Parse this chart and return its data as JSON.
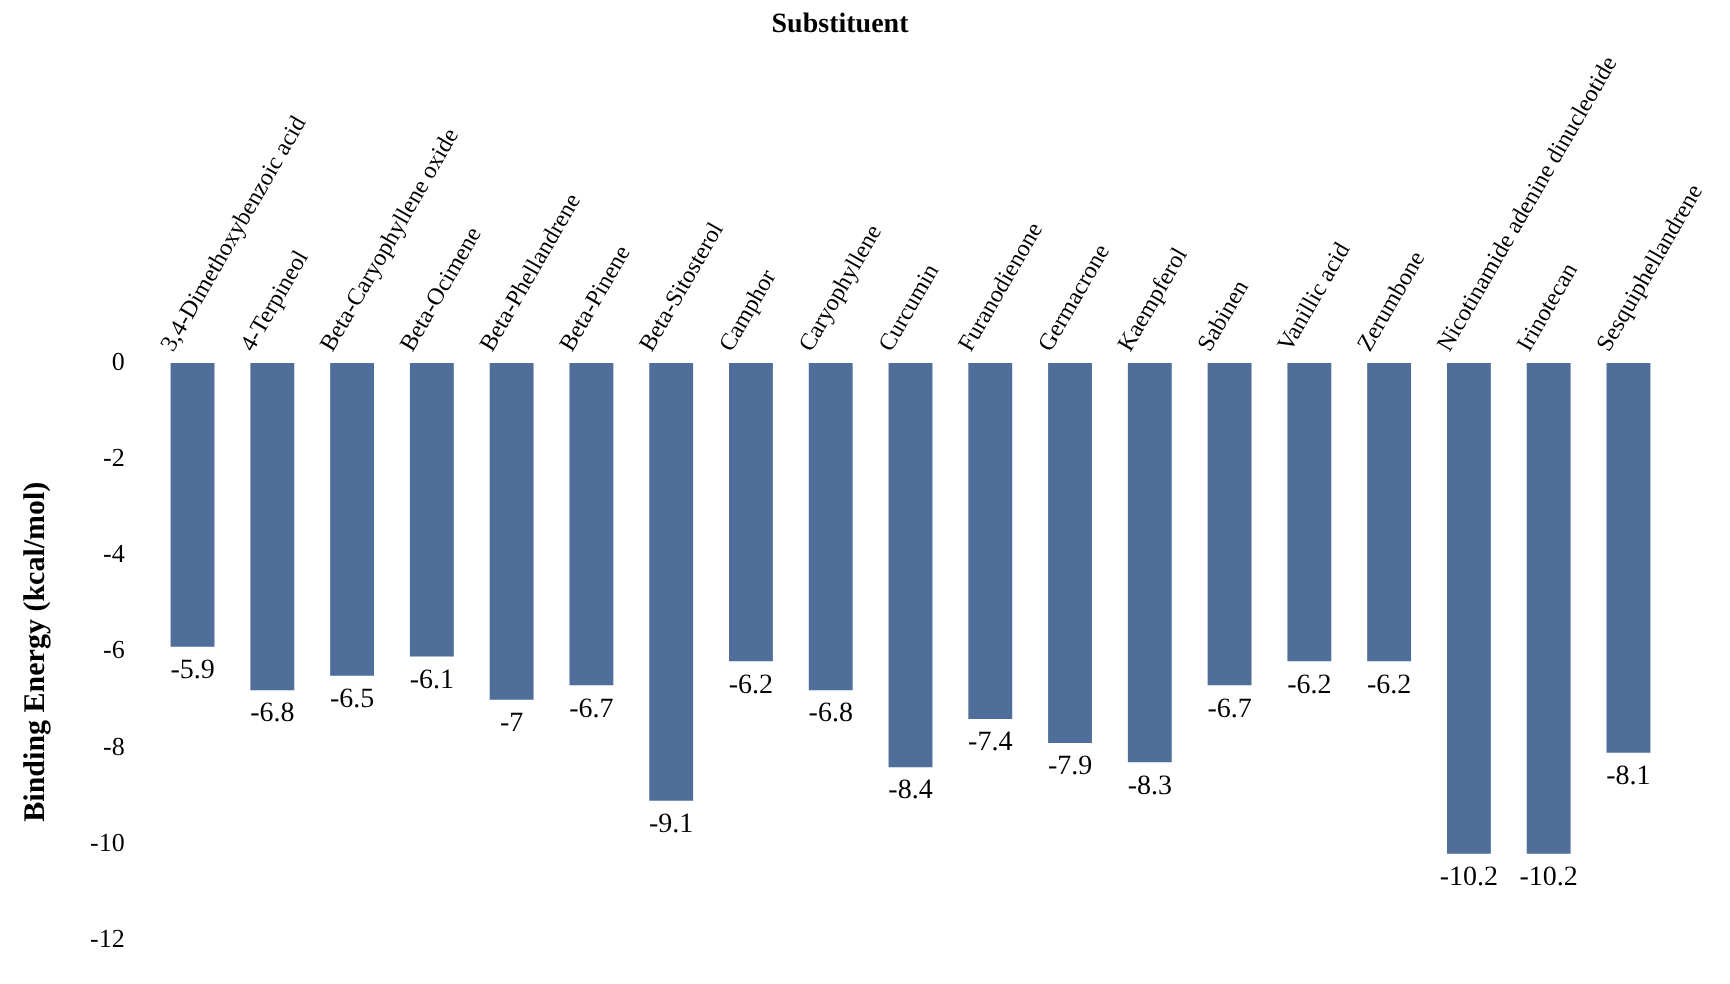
{
  "chart_data": {
    "type": "bar",
    "title": "Substituent",
    "ylabel": "Binding Energy (kcal/mol)",
    "categories": [
      "3,4-Dimethoxybenzoic acid",
      "4-Terpineol",
      "Beta-Caryophyllene oxide",
      "Beta-Ocimene",
      "Beta-Phellandrene",
      "Beta-Pinene",
      "Beta-Sitosterol",
      "Camphor",
      "Caryophyllene",
      "Curcumin",
      "Furanodienone",
      "Germacrone",
      "Kaempferol",
      "Sabinen",
      "Vanillic acid",
      "Zerumbone",
      "Nicotinamide adenine dinucleotide",
      "Irinotecan",
      "Sesquiphellandrene"
    ],
    "values": [
      -5.9,
      -6.8,
      -6.5,
      -6.1,
      -7,
      -6.7,
      -9.1,
      -6.2,
      -6.8,
      -8.4,
      -7.4,
      -7.9,
      -8.3,
      -6.7,
      -6.2,
      -6.2,
      -10.2,
      -10.2,
      -8.1
    ],
    "color": "#4f6f9a",
    "ylim": [
      -12,
      0
    ],
    "yticks": [
      -12,
      -10,
      -8,
      -6,
      -4,
      -2,
      0
    ],
    "grid": false,
    "data_labels": true,
    "legend": false
  }
}
